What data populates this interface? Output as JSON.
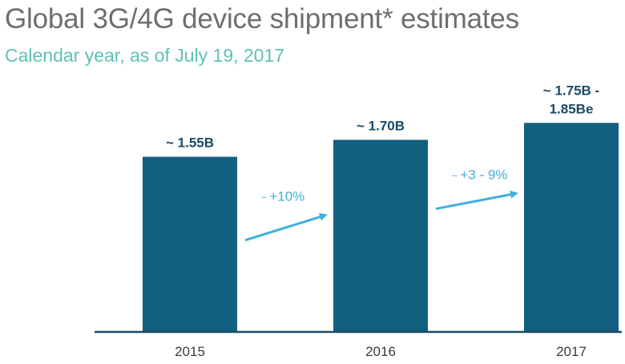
{
  "chart_data": {
    "type": "bar",
    "title": "Global 3G/4G device shipment* estimates",
    "subtitle": "Calendar year, as of July 19, 2017",
    "categories": [
      "2015",
      "2016",
      "2017"
    ],
    "values": [
      1.55,
      1.7,
      1.85
    ],
    "data_labels": [
      [
        "~ 1.55B"
      ],
      [
        "~ 1.70B"
      ],
      [
        "~ 1.75B -",
        "1.85Be"
      ]
    ],
    "ylim": [
      0,
      1.93
    ],
    "annotations": [
      {
        "tilde": "~",
        "text": "+10%"
      },
      {
        "tilde": "~",
        "text": "+3 - 9%"
      }
    ],
    "colors": {
      "bar": "#135f80",
      "arrow": "#3fb0dc",
      "axis": "#1a4a63"
    }
  }
}
